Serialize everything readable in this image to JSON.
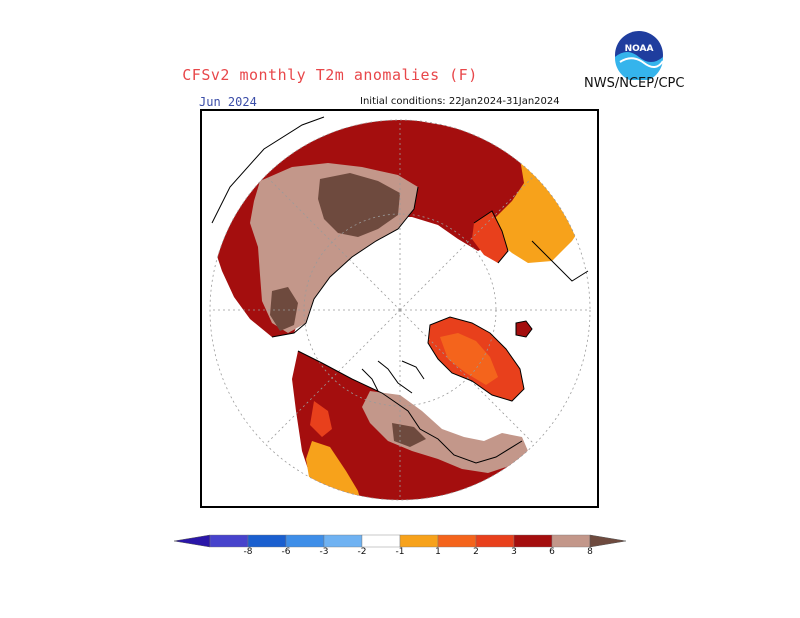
{
  "header": {
    "title": "CFSv2 monthly T2m anomalies (F)",
    "agency": "NWS/NCEP/CPC",
    "logo_text": "NOAA",
    "valid_month": "Jun 2024",
    "initial_conditions": "Initial conditions: 22Jan2024-31Jan2024"
  },
  "colors": {
    "title": "#e8474a",
    "month": "#3c4ea8",
    "land_outline": "#000000",
    "grid": "#9a9a9a"
  },
  "colorbar": {
    "bins": [
      {
        "color": "#2a16a8"
      },
      {
        "color": "#4743cc"
      },
      {
        "color": "#1a5fcf"
      },
      {
        "color": "#3e8ee8"
      },
      {
        "color": "#6fb2f2"
      },
      {
        "color": "#ffffff"
      },
      {
        "color": "#f7a21b"
      },
      {
        "color": "#f4641c"
      },
      {
        "color": "#e8401c"
      },
      {
        "color": "#a40e0e"
      },
      {
        "color": "#c3978a"
      },
      {
        "color": "#6e4a3e"
      }
    ],
    "labels": [
      {
        "text": "-8",
        "pos": 0
      },
      {
        "text": "-6",
        "pos": 1
      },
      {
        "text": "-3",
        "pos": 2
      },
      {
        "text": "-2",
        "pos": 3
      },
      {
        "text": "-1",
        "pos": 4
      },
      {
        "text": "1",
        "pos": 5
      },
      {
        "text": "2",
        "pos": 6
      },
      {
        "text": "3",
        "pos": 7
      },
      {
        "text": "6",
        "pos": 8
      },
      {
        "text": "8",
        "pos": 9
      }
    ]
  },
  "map": {
    "projection": "north-polar-stereographic",
    "regions": [
      {
        "name": "eurasia-warm-red",
        "color": "#a40e0e"
      },
      {
        "name": "siberia-strong-warm",
        "color": "#c3978a"
      },
      {
        "name": "siberia-core-max",
        "color": "#6e4a3e"
      },
      {
        "name": "europe-orange",
        "color": "#f7a21b"
      },
      {
        "name": "north-america-red",
        "color": "#a40e0e"
      },
      {
        "name": "canada-strong-warm",
        "color": "#c3978a"
      },
      {
        "name": "us-orange",
        "color": "#f7a21b"
      },
      {
        "name": "greenland-warm",
        "color": "#e8401c"
      }
    ]
  }
}
